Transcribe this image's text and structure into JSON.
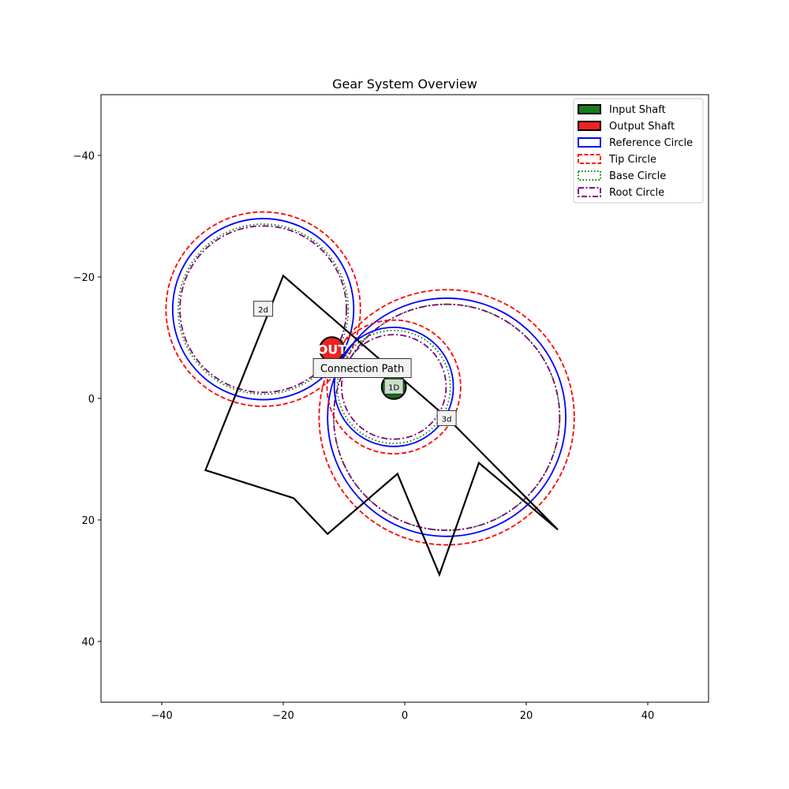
{
  "title": "Gear System Overview",
  "axes": {
    "x_range": [
      -50,
      50
    ],
    "y_range": [
      -50,
      50
    ],
    "y_inverted": true,
    "x_ticks": [
      -40,
      -20,
      0,
      20,
      40
    ],
    "y_ticks": [
      -40,
      -20,
      0,
      20,
      40
    ],
    "x_tick_labels": [
      "−40",
      "−20",
      "0",
      "20",
      "40"
    ],
    "y_tick_labels": [
      "−40",
      "−20",
      "0",
      "20",
      "40"
    ]
  },
  "legend": {
    "placement": "top-right",
    "items": [
      {
        "label": "Input Shaft",
        "style": "patch",
        "fill": "#1a7a1a",
        "stroke": "#000000"
      },
      {
        "label": "Output Shaft",
        "style": "patch",
        "fill": "#ee2222",
        "stroke": "#000000"
      },
      {
        "label": "Reference Circle",
        "style": "solid",
        "stroke": "#0000ff"
      },
      {
        "label": "Tip Circle",
        "style": "dashed",
        "stroke": "#ff0000"
      },
      {
        "label": "Base Circle",
        "style": "dotted",
        "stroke": "#008000"
      },
      {
        "label": "Root Circle",
        "style": "dashdot",
        "stroke": "#800080"
      }
    ]
  },
  "gears": [
    {
      "label": "2d",
      "cx": -23.3,
      "cy": -14.7,
      "reference_r": 14.9,
      "tip_r": 16.0,
      "base_r": 14.0,
      "root_r": 13.7
    },
    {
      "label": "3d",
      "cx": 6.9,
      "cy": 3.1,
      "reference_r": 19.6,
      "tip_r": 21.0,
      "base_r": 18.6,
      "root_r": 18.6
    },
    {
      "label": "1D",
      "cx": -1.8,
      "cy": -1.9,
      "reference_r": 9.8,
      "tip_r": 11.0,
      "base_r": 9.3,
      "root_r": 8.6
    }
  ],
  "gear_labels": [
    {
      "text": "2d",
      "x": -23.3,
      "y": -14.7
    },
    {
      "text": "3d",
      "x": 6.9,
      "y": 3.3
    },
    {
      "text": "1D",
      "x": -1.8,
      "y": -1.9
    }
  ],
  "input_shaft": {
    "x": -1.8,
    "y": -1.9,
    "r": 2.0,
    "fill": "#1a6a1a",
    "label": "1D"
  },
  "output_shaft": {
    "x": -12.0,
    "y": -8.1,
    "r": 2.0,
    "fill": "#ee2222",
    "label": "OUT"
  },
  "connection_path": {
    "label": "Connection Path",
    "label_x": -7.0,
    "label_y": -5.0,
    "points": [
      [
        25.2,
        21.6
      ],
      [
        6.9,
        3.1
      ],
      [
        -20.0,
        -20.2
      ],
      [
        -32.8,
        11.8
      ],
      [
        -18.3,
        16.4
      ],
      [
        -12.7,
        22.3
      ],
      [
        -1.2,
        12.4
      ],
      [
        5.7,
        29.0
      ],
      [
        12.2,
        10.6
      ],
      [
        25.2,
        21.6
      ]
    ]
  },
  "colors": {
    "reference": "#0000ff",
    "tip": "#ff0000",
    "base": "#008000",
    "root": "#800080",
    "path": "#000000"
  }
}
